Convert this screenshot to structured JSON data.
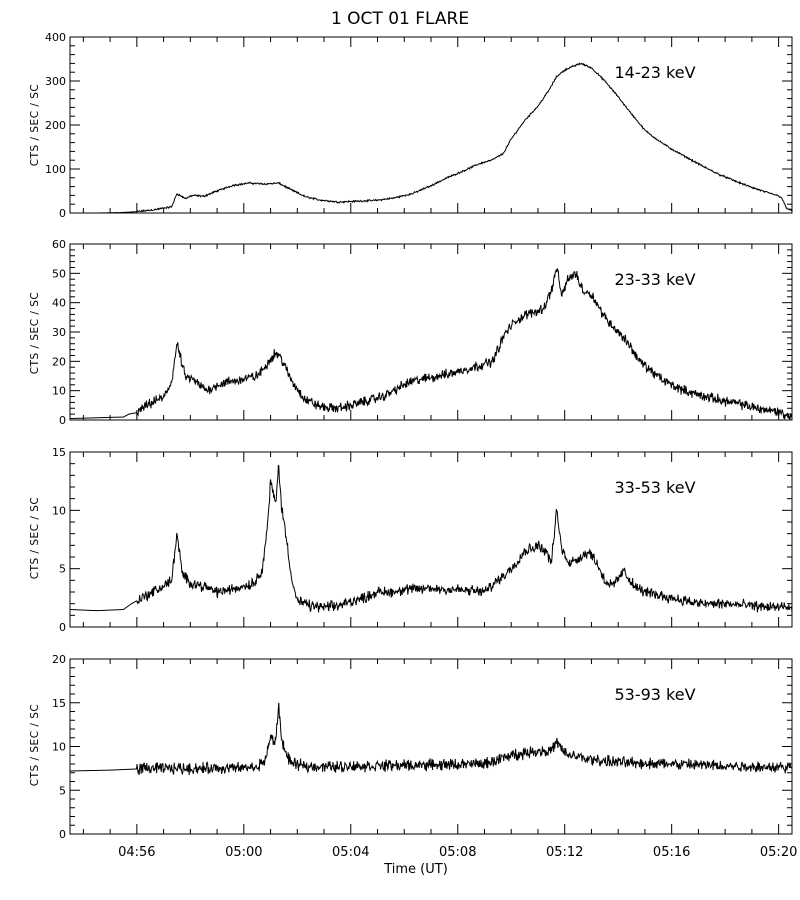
{
  "chart_data": {
    "type": "line",
    "title": "1 OCT 01 FLARE",
    "xlabel": "Time (UT)",
    "x_ticks": [
      "04:56",
      "05:00",
      "05:04",
      "05:08",
      "05:12",
      "05:16",
      "05:20"
    ],
    "x_range_min": [
      293.5,
      320.5
    ],
    "panels": [
      {
        "name": "14-23 keV",
        "ylabel": "CTS / SEC / SC",
        "ylim": [
          0,
          400
        ],
        "yticks": [
          0,
          100,
          200,
          300,
          400
        ],
        "noise": 1.5,
        "x": [
          293.5,
          294.5,
          295.4,
          296.0,
          296.6,
          297.0,
          297.3,
          297.5,
          297.8,
          298.1,
          298.5,
          299.0,
          299.6,
          300.2,
          300.8,
          301.3,
          301.8,
          302.3,
          302.8,
          303.5,
          304.3,
          305.0,
          305.6,
          306.3,
          307.0,
          307.6,
          308.3,
          308.8,
          309.3,
          309.7,
          310.0,
          310.5,
          311.0,
          311.4,
          311.7,
          312.0,
          312.3,
          312.6,
          313.0,
          313.5,
          314.0,
          314.5,
          315.0,
          315.5,
          316.0,
          316.6,
          317.2,
          317.8,
          318.4,
          319.0,
          319.6,
          319.9,
          320.1,
          320.3,
          320.5
        ],
        "y": [
          0,
          0,
          1,
          3,
          7,
          11,
          14,
          44,
          33,
          40,
          38,
          50,
          63,
          68,
          66,
          68,
          52,
          37,
          30,
          25,
          27,
          29,
          34,
          44,
          62,
          80,
          98,
          112,
          121,
          135,
          168,
          210,
          243,
          278,
          310,
          325,
          333,
          340,
          330,
          300,
          264,
          225,
          188,
          165,
          145,
          125,
          105,
          87,
          72,
          58,
          46,
          41,
          36,
          10,
          6
        ]
      },
      {
        "name": "23-33 keV",
        "ylabel": "CTS / SEC / SC",
        "ylim": [
          0,
          60
        ],
        "yticks": [
          0,
          10,
          20,
          30,
          40,
          50,
          60
        ],
        "noise": 1.3,
        "x": [
          293.5,
          294.3,
          295.0,
          295.5,
          295.7,
          296.0,
          296.4,
          296.8,
          297.0,
          297.3,
          297.5,
          297.8,
          298.2,
          298.6,
          299.0,
          299.5,
          300.0,
          300.5,
          300.8,
          301.0,
          301.2,
          301.4,
          301.8,
          302.3,
          302.8,
          303.2,
          303.6,
          304.0,
          304.4,
          304.8,
          305.2,
          305.6,
          306.2,
          307.0,
          307.8,
          308.6,
          309.3,
          309.8,
          310.2,
          310.6,
          310.9,
          311.2,
          311.5,
          311.7,
          311.9,
          312.1,
          312.4,
          312.7,
          313.0,
          313.3,
          313.6,
          314.0,
          314.4,
          314.8,
          315.2,
          315.6,
          316.0,
          316.5,
          317.0,
          317.5,
          318.0,
          318.5,
          319.0,
          319.5,
          319.9,
          320.1,
          320.3,
          320.5
        ],
        "y": [
          0.5,
          0.7,
          0.9,
          1.0,
          2.0,
          2.5,
          5.0,
          7.0,
          7.5,
          13,
          26,
          15,
          13,
          10,
          12,
          13,
          14,
          15,
          18,
          21,
          23,
          21,
          13,
          7.0,
          4.8,
          4.0,
          4.2,
          5.0,
          6.0,
          7.0,
          8.0,
          10,
          13,
          14.5,
          16,
          18,
          20,
          30,
          34,
          36,
          37,
          38,
          44,
          52,
          42,
          48,
          50,
          44,
          43,
          38,
          34,
          30,
          26,
          20,
          17,
          14,
          12,
          10,
          8.5,
          7.5,
          6.5,
          5.5,
          4.5,
          3.5,
          3.0,
          2.5,
          1.5,
          0.8
        ]
      },
      {
        "name": "33-53 keV",
        "ylabel": "CTS / SEC / SC",
        "ylim": [
          0,
          15
        ],
        "yticks": [
          0,
          5,
          10,
          15
        ],
        "noise": 0.35,
        "x": [
          293.5,
          294.5,
          295.5,
          295.8,
          296.2,
          296.6,
          297.0,
          297.3,
          297.5,
          297.7,
          298.0,
          298.5,
          299.0,
          299.5,
          300.0,
          300.4,
          300.7,
          300.9,
          301.0,
          301.2,
          301.3,
          301.4,
          301.6,
          301.8,
          302.0,
          302.5,
          303.0,
          303.5,
          304.0,
          304.5,
          305.0,
          305.5,
          306.0,
          307.0,
          308.0,
          309.0,
          309.5,
          310.0,
          310.5,
          311.0,
          311.3,
          311.5,
          311.7,
          311.9,
          312.2,
          312.6,
          312.9,
          313.2,
          313.5,
          313.8,
          314.2,
          314.6,
          315.0,
          316.0,
          317.0,
          318.0,
          319.0,
          320.0,
          320.5
        ],
        "y": [
          1.5,
          1.4,
          1.5,
          2.0,
          2.5,
          3.0,
          3.5,
          4.0,
          8.0,
          4.5,
          3.8,
          3.5,
          3.0,
          3.2,
          3.5,
          3.8,
          5.0,
          9.0,
          12.5,
          10.5,
          14.0,
          10.5,
          7.5,
          4.0,
          2.2,
          1.8,
          1.7,
          1.8,
          2.2,
          2.5,
          3.0,
          3.0,
          3.2,
          3.3,
          3.2,
          3.0,
          4.0,
          5.0,
          6.5,
          7.0,
          6.5,
          5.5,
          10.0,
          6.5,
          5.5,
          6.0,
          6.5,
          5.5,
          4.0,
          3.5,
          4.8,
          3.5,
          3.0,
          2.5,
          2.0,
          2.0,
          1.8,
          1.7,
          1.6
        ]
      },
      {
        "name": "53-93 keV",
        "ylabel": "CTS / SEC / SC",
        "ylim": [
          0,
          20
        ],
        "yticks": [
          0,
          5,
          10,
          15,
          20
        ],
        "noise": 0.5,
        "x": [
          293.5,
          295.0,
          296.5,
          298.0,
          299.5,
          300.5,
          300.8,
          301.0,
          301.2,
          301.3,
          301.4,
          301.6,
          301.8,
          302.2,
          303.0,
          305.0,
          307.0,
          309.0,
          310.0,
          311.0,
          311.5,
          311.7,
          312.0,
          312.5,
          313.0,
          314.0,
          316.0,
          318.0,
          320.5
        ],
        "y": [
          7.2,
          7.3,
          7.5,
          7.5,
          7.5,
          7.6,
          8.5,
          11.0,
          10.5,
          15.0,
          11.0,
          9.0,
          8.0,
          7.8,
          7.7,
          7.8,
          7.9,
          8.0,
          9.0,
          9.5,
          9.5,
          10.5,
          9.2,
          8.8,
          8.5,
          8.2,
          8.0,
          7.8,
          7.6
        ]
      }
    ]
  }
}
